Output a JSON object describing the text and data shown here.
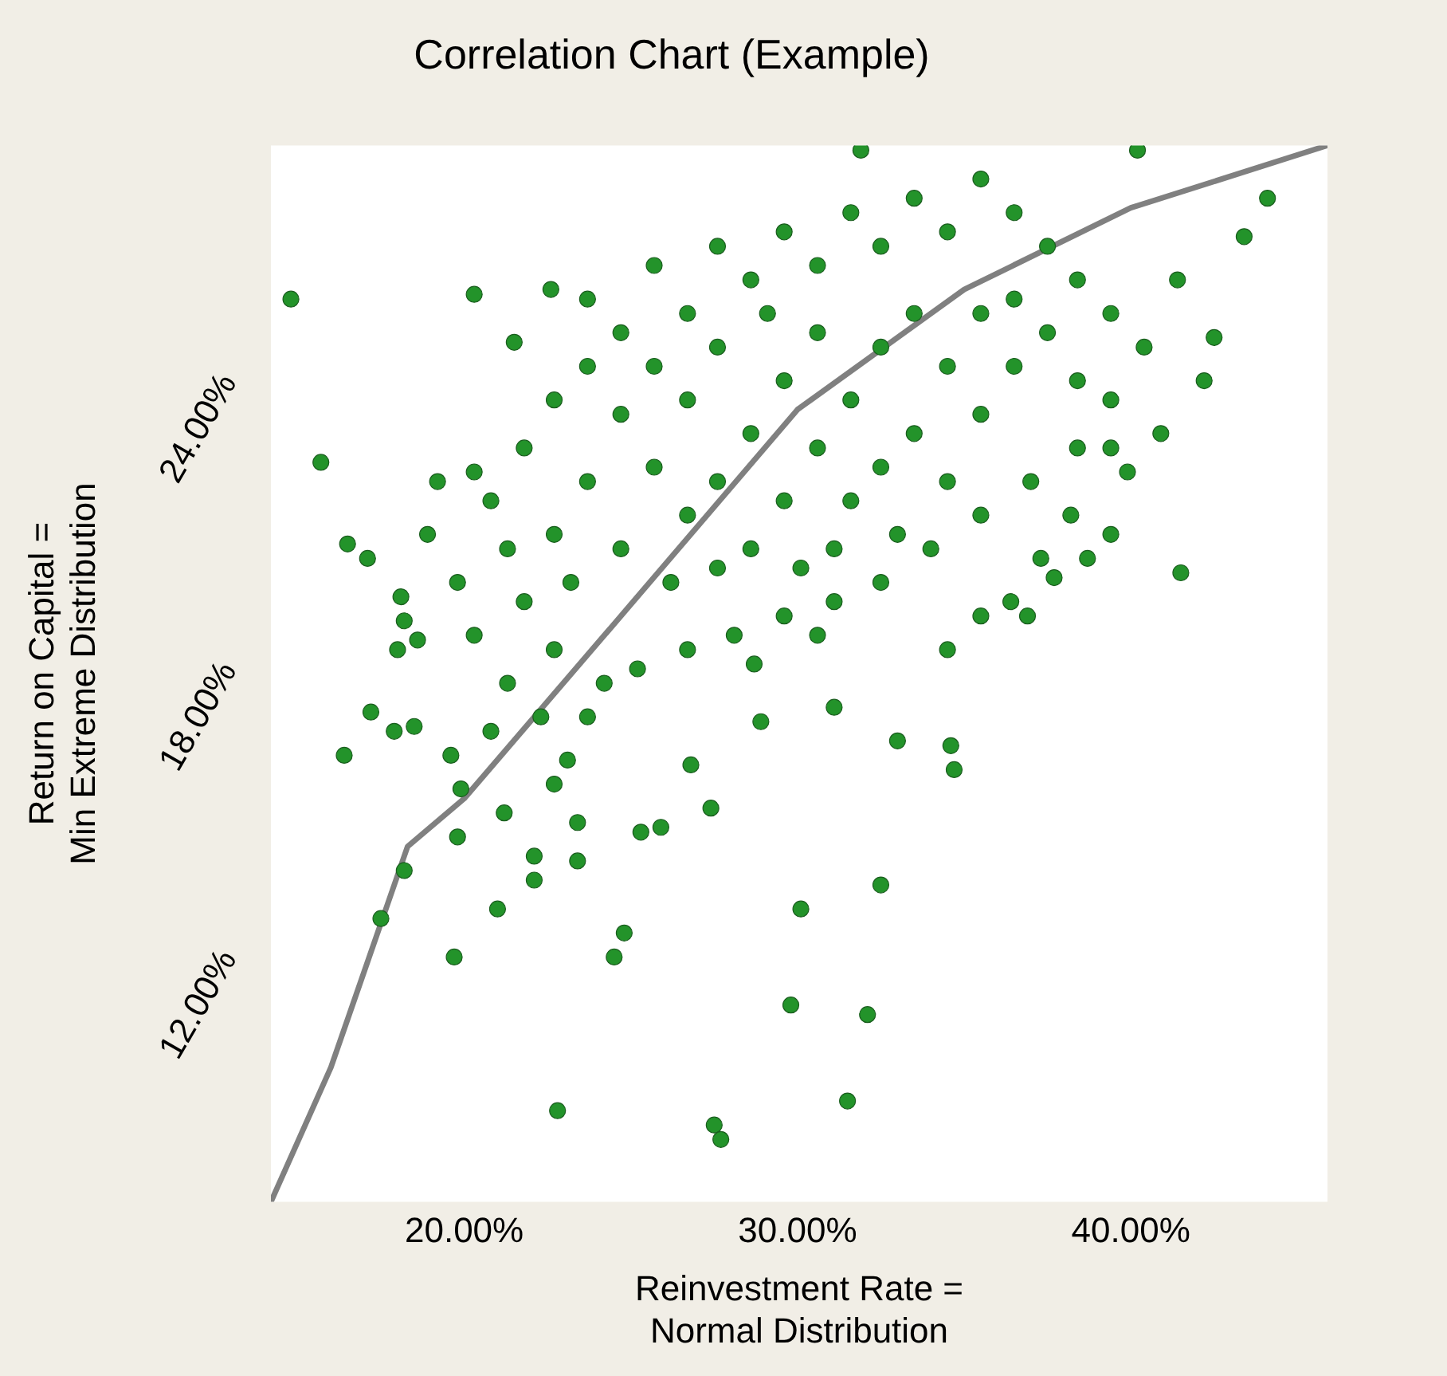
{
  "chart_data": {
    "type": "scatter",
    "title": "Correlation Chart (Example)",
    "xlabel": "Reinvestment Rate =\nNormal Distribution",
    "ylabel": "Return on Capital =\nMin Extreme Distribution",
    "xlim": [
      14.2,
      45.9
    ],
    "ylim": [
      7.9,
      29.9
    ],
    "xticks": [
      {
        "value": 20,
        "label": "20.00%"
      },
      {
        "value": 30,
        "label": "30.00%"
      },
      {
        "value": 40,
        "label": "40.00%"
      }
    ],
    "yticks": [
      {
        "value": 12,
        "label": "12.00%"
      },
      {
        "value": 18,
        "label": "18.00%"
      },
      {
        "value": 24,
        "label": "24.00%"
      }
    ],
    "grid": false,
    "legend": false,
    "marker": "circle",
    "series": [
      {
        "color": "#23932a",
        "x": [
          14.8,
          15.7,
          16.5,
          17.1,
          16.4,
          17.2,
          17.5,
          18.2,
          19.7,
          19.6,
          17.9,
          18.5,
          19.9,
          19.8,
          22.8,
          27.5,
          27.7,
          27.4,
          24.5,
          24.8,
          29.8,
          32.1,
          31.5,
          30.1,
          32.5,
          34.7,
          34.6,
          41.5,
          31.9,
          40.2,
          44.1,
          43.4,
          42.5,
          42.2,
          40.9,
          39.9,
          20.3,
          20.3,
          22.6,
          21.5,
          19.2,
          18.9,
          18.1,
          18.2,
          18.0,
          18.6,
          21.2,
          21.0,
          22.1,
          22.1,
          22.7,
          23.1,
          23.4,
          23.4,
          23.7,
          25.3,
          25.9,
          26.8,
          28.7,
          28.9,
          30.6,
          31.1,
          33.0,
          34.5,
          35.5,
          36.9,
          37.7,
          39.4,
          38.7,
          36.4,
          38.2,
          37.3,
          23.7,
          24.7,
          25.7,
          26.7,
          27.6,
          28.6,
          29.6,
          30.6,
          31.6,
          32.5,
          33.5,
          34.5,
          35.5,
          36.5,
          37.5,
          38.4,
          39.4,
          40.4,
          41.4,
          39.4,
          38.4,
          37.0,
          35.5,
          34.0,
          32.5,
          31.1,
          29.6,
          28.1,
          26.7,
          25.2,
          24.2,
          22.7,
          21.8,
          21.3,
          20.8,
          21.8,
          22.7,
          23.7,
          24.7,
          25.7,
          26.7,
          27.6,
          28.6,
          29.6,
          30.6,
          31.6,
          32.5,
          33.5,
          34.5,
          35.5,
          36.5,
          37.5,
          38.4,
          39.4,
          30.6,
          29.6,
          28.6,
          27.6,
          26.7,
          25.7,
          27.6,
          29.1,
          31.6,
          32.5,
          33.5,
          34.5,
          35.5,
          36.5,
          33.0,
          31.1,
          30.1,
          24.7,
          23.7,
          22.7,
          23.2,
          26.2,
          22.3,
          21.3,
          20.3,
          19.8,
          20.8
        ],
        "values": [
          26.7,
          23.3,
          21.6,
          21.3,
          17.2,
          18.1,
          13.8,
          14.8,
          13.0,
          17.2,
          17.7,
          17.8,
          16.5,
          15.5,
          9.8,
          9.5,
          9.2,
          16.1,
          13.0,
          13.5,
          12.0,
          11.8,
          10.0,
          14.0,
          14.5,
          16.9,
          17.4,
          21.0,
          29.8,
          29.8,
          28.8,
          28.0,
          25.9,
          25.0,
          23.9,
          23.1,
          23.1,
          26.8,
          26.9,
          25.8,
          22.9,
          21.8,
          20.5,
          20.0,
          19.4,
          19.6,
          16.0,
          14.0,
          14.6,
          15.1,
          16.6,
          17.1,
          15.8,
          15.0,
          18.0,
          15.6,
          15.7,
          17.0,
          19.1,
          17.9,
          19.7,
          18.2,
          17.5,
          19.4,
          20.1,
          20.1,
          20.9,
          21.8,
          21.3,
          20.4,
          22.2,
          21.3,
          26.7,
          26.0,
          27.4,
          26.4,
          27.8,
          27.1,
          28.1,
          27.4,
          28.5,
          27.8,
          28.8,
          28.1,
          29.2,
          28.5,
          27.8,
          27.1,
          26.4,
          25.7,
          27.1,
          24.6,
          23.6,
          22.9,
          22.2,
          21.5,
          20.8,
          20.4,
          20.1,
          19.7,
          19.4,
          19.0,
          18.7,
          19.4,
          20.4,
          21.5,
          22.5,
          23.6,
          24.6,
          25.3,
          24.3,
          23.2,
          22.2,
          21.1,
          21.5,
          22.5,
          23.6,
          24.6,
          25.7,
          26.4,
          25.3,
          24.3,
          25.3,
          26.0,
          25.0,
          23.6,
          26.0,
          25.0,
          23.9,
          22.9,
          24.6,
          25.3,
          25.7,
          26.4,
          22.5,
          23.2,
          23.9,
          22.9,
          26.4,
          26.7,
          21.8,
          21.5,
          21.1,
          21.5,
          22.9,
          21.8,
          20.8,
          20.8,
          18.0,
          18.7,
          19.7,
          20.8,
          17.7
        ]
      },
      {
        "type": "line",
        "color": "#808080",
        "marker": "none",
        "x": [
          14.2,
          16.0,
          18.3,
          20.0,
          24.7,
          30.0,
          35.0,
          40.0,
          45.9
        ],
        "values": [
          7.9,
          10.7,
          15.3,
          16.3,
          20.1,
          24.4,
          26.9,
          28.6,
          29.9
        ]
      }
    ]
  }
}
